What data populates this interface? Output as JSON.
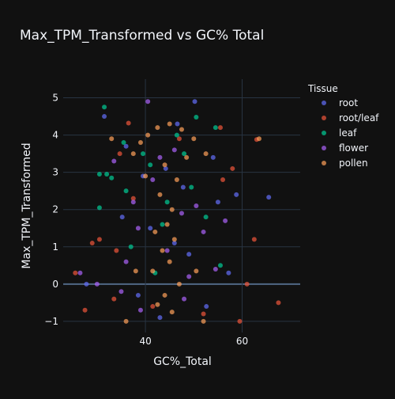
{
  "chart_data": {
    "type": "scatter",
    "title": "Max_TPM_Transformed vs GC% Total",
    "xlabel": "GC%_Total",
    "ylabel": "Max_TPM_Transformed",
    "xlim": [
      23,
      72
    ],
    "ylim": [
      -1.3,
      5.5
    ],
    "x_ticks": [
      40,
      60
    ],
    "y_ticks": [
      -1,
      0,
      1,
      2,
      3,
      4,
      5
    ],
    "grid": true,
    "legend_title": "Tissue",
    "legend_position": "right",
    "series": [
      {
        "name": "root",
        "color": "#636efa",
        "points": [
          [
            65.5,
            2.33
          ],
          [
            50.2,
            4.9
          ],
          [
            46.6,
            4.3
          ],
          [
            31.5,
            4.5
          ],
          [
            58.8,
            2.4
          ],
          [
            27.8,
            0.0
          ],
          [
            36.0,
            3.7
          ],
          [
            55.0,
            2.2
          ],
          [
            38.5,
            -0.3
          ],
          [
            49.0,
            0.8
          ],
          [
            44.2,
            3.1
          ],
          [
            41.0,
            1.5
          ],
          [
            52.6,
            -0.6
          ],
          [
            35.2,
            1.8
          ],
          [
            47.8,
            2.6
          ],
          [
            43.0,
            -0.9
          ],
          [
            57.2,
            0.3
          ],
          [
            39.5,
            2.9
          ],
          [
            46.0,
            1.1
          ],
          [
            54.0,
            3.4
          ]
        ]
      },
      {
        "name": "root/leaf",
        "color": "#ef553b",
        "points": [
          [
            36.5,
            4.32
          ],
          [
            67.5,
            -0.5
          ],
          [
            63.0,
            3.88
          ],
          [
            27.5,
            -0.7
          ],
          [
            59.5,
            -1.0
          ],
          [
            34.7,
            3.5
          ],
          [
            25.5,
            0.3
          ],
          [
            62.5,
            1.2
          ],
          [
            30.5,
            1.2
          ],
          [
            58.0,
            3.1
          ],
          [
            33.5,
            -0.4
          ],
          [
            55.5,
            4.2
          ],
          [
            29.0,
            1.1
          ],
          [
            61.0,
            0.0
          ],
          [
            37.5,
            2.3
          ],
          [
            52.0,
            -0.8
          ],
          [
            34.0,
            0.9
          ],
          [
            47.0,
            3.9
          ],
          [
            41.5,
            -0.6
          ],
          [
            56.0,
            2.8
          ]
        ]
      },
      {
        "name": "leaf",
        "color": "#00cc96",
        "points": [
          [
            31.5,
            4.75
          ],
          [
            32.0,
            2.95
          ],
          [
            33.0,
            2.85
          ],
          [
            30.5,
            2.95
          ],
          [
            50.5,
            4.48
          ],
          [
            30.5,
            2.05
          ],
          [
            35.5,
            3.8
          ],
          [
            54.5,
            4.2
          ],
          [
            48.0,
            3.5
          ],
          [
            44.5,
            2.2
          ],
          [
            39.5,
            3.5
          ],
          [
            37.0,
            1.0
          ],
          [
            52.5,
            1.8
          ],
          [
            42.0,
            0.3
          ],
          [
            46.5,
            4.0
          ],
          [
            41.0,
            3.2
          ],
          [
            49.5,
            2.6
          ],
          [
            36.0,
            2.5
          ],
          [
            55.5,
            0.5
          ],
          [
            43.5,
            1.6
          ]
        ]
      },
      {
        "name": "flower",
        "color": "#ab63fa",
        "points": [
          [
            40.5,
            4.9
          ],
          [
            33.5,
            3.3
          ],
          [
            30.0,
            0.0
          ],
          [
            26.5,
            0.3
          ],
          [
            38.5,
            1.5
          ],
          [
            48.0,
            -0.4
          ],
          [
            50.5,
            2.1
          ],
          [
            36.0,
            0.6
          ],
          [
            44.5,
            0.9
          ],
          [
            52.0,
            1.4
          ],
          [
            41.5,
            2.8
          ],
          [
            46.0,
            3.6
          ],
          [
            35.0,
            -0.2
          ],
          [
            54.5,
            0.4
          ],
          [
            39.0,
            -0.7
          ],
          [
            47.5,
            1.9
          ],
          [
            43.0,
            3.4
          ],
          [
            49.0,
            0.2
          ],
          [
            37.5,
            2.2
          ],
          [
            56.5,
            1.7
          ]
        ]
      },
      {
        "name": "pollen",
        "color": "#ffa15a",
        "points": [
          [
            63.5,
            3.9
          ],
          [
            33.0,
            3.9
          ],
          [
            37.5,
            3.5
          ],
          [
            39.0,
            3.8
          ],
          [
            40.5,
            4.0
          ],
          [
            42.5,
            4.2
          ],
          [
            45.0,
            4.3
          ],
          [
            47.5,
            4.15
          ],
          [
            50.0,
            3.9
          ],
          [
            52.5,
            3.5
          ],
          [
            44.0,
            3.2
          ],
          [
            46.5,
            2.8
          ],
          [
            43.0,
            2.4
          ],
          [
            45.5,
            2.0
          ],
          [
            44.5,
            1.6
          ],
          [
            42.0,
            1.4
          ],
          [
            46.0,
            1.2
          ],
          [
            43.5,
            0.9
          ],
          [
            45.0,
            0.6
          ],
          [
            41.5,
            0.35
          ],
          [
            47.0,
            0.0
          ],
          [
            44.0,
            -0.3
          ],
          [
            42.5,
            -0.55
          ],
          [
            45.5,
            -0.75
          ],
          [
            38.0,
            0.35
          ],
          [
            50.5,
            0.35
          ],
          [
            36.0,
            -1.0
          ],
          [
            52.0,
            -1.0
          ],
          [
            40.0,
            2.9
          ],
          [
            48.5,
            3.4
          ]
        ]
      }
    ]
  }
}
